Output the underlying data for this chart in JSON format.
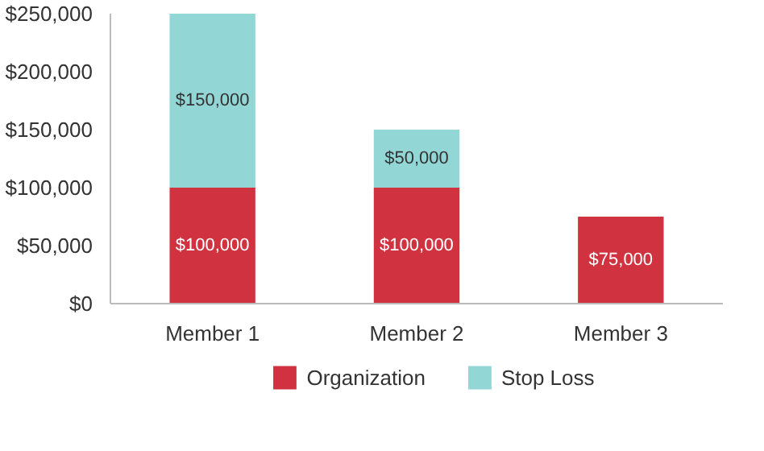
{
  "chart_data": {
    "type": "bar",
    "stacked": true,
    "categories": [
      "Member 1",
      "Member 2",
      "Member 3"
    ],
    "series": [
      {
        "name": "Organization",
        "color": "#d0333f",
        "values": [
          100000,
          100000,
          75000
        ],
        "value_labels": [
          "$100,000",
          "$100,000",
          "$75,000"
        ]
      },
      {
        "name": "Stop Loss",
        "color": "#92d6d6",
        "values": [
          150000,
          50000,
          null
        ],
        "value_labels": [
          "$150,000",
          "$50,000",
          null
        ]
      }
    ],
    "ylim": [
      0,
      250000
    ],
    "yticks": [
      {
        "value": 0,
        "label": "$0"
      },
      {
        "value": 50000,
        "label": "$50,000"
      },
      {
        "value": 100000,
        "label": "$100,000"
      },
      {
        "value": 150000,
        "label": "$150,000"
      },
      {
        "value": 200000,
        "label": "$200,000"
      },
      {
        "value": 250000,
        "label": "$250,000"
      }
    ],
    "grid": false,
    "legend": "bottom"
  }
}
